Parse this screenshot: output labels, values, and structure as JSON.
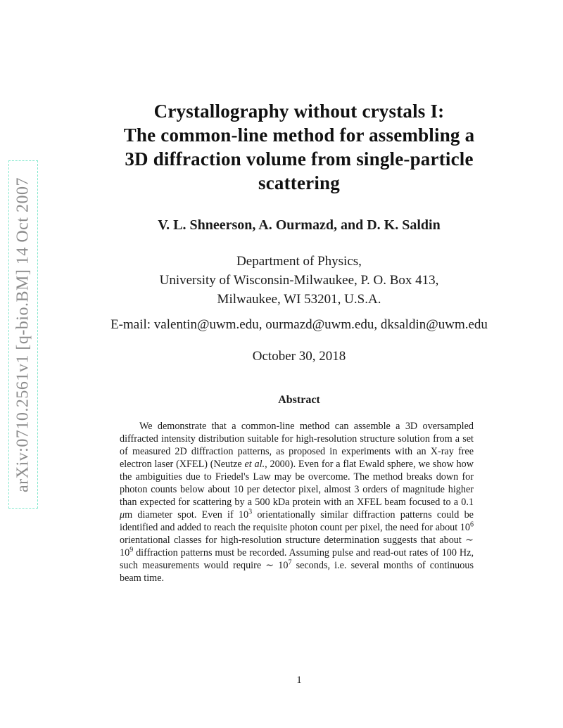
{
  "watermark": {
    "text": "arXiv:0710.2561v1  [q-bio.BM]  14 Oct 2007",
    "text_color": "#8c8c8c",
    "border_color": "#80e8cc"
  },
  "title": {
    "lines": [
      "Crystallography without crystals I:",
      "The common-line method for assembling a",
      "3D diffraction volume from single-particle",
      "scattering"
    ]
  },
  "authors": "V. L. Shneerson, A. Ourmazd, and D. K. Saldin",
  "affiliation": {
    "lines": [
      "Department of Physics,",
      "University of Wisconsin-Milwaukee, P. O. Box 413,",
      "Milwaukee, WI 53201, U.S.A."
    ]
  },
  "contact": {
    "email_line": "E-mail: valentin@uwm.edu, ourmazd@uwm.edu, dksaldin@uwm.edu"
  },
  "date": "October 30, 2018",
  "abstract": {
    "heading": "Abstract",
    "segments": [
      {
        "text": "We demonstrate that a common-line method can assemble a 3D oversampled diffracted intensity distribution suitable for high-resolution structure solution from a set of measured 2D diffraction patterns, as proposed in experiments with an X-ray free electron laser (XFEL) (Neutze "
      },
      {
        "text": "et al.",
        "italic": true
      },
      {
        "text": ", 2000). Even for a flat Ewald sphere, we show how the ambiguities due to Friedel's Law may be overcome. The method breaks down for photon counts below about 10 per detector pixel, almost 3 orders of magnitude higher than expected for scattering by a 500 kDa protein with an XFEL beam focused to a 0.1 "
      },
      {
        "text": "μ",
        "italic": true
      },
      {
        "text": "m diameter spot. Even if 10"
      },
      {
        "text": "3",
        "sup": true
      },
      {
        "text": " orientationally similar diffraction patterns could be identified and added to reach the requisite photon count per pixel, the need for about 10"
      },
      {
        "text": "6",
        "sup": true
      },
      {
        "text": " orientational classes for high-resolution structure determination suggests that about ∼ 10"
      },
      {
        "text": "9",
        "sup": true
      },
      {
        "text": " diffraction patterns must be recorded. Assuming pulse and read-out rates of 100 Hz, such measurements would require ∼ 10"
      },
      {
        "text": "7",
        "sup": true
      },
      {
        "text": " seconds, i.e. several months of continuous beam time."
      }
    ]
  },
  "page": {
    "number": "1"
  }
}
